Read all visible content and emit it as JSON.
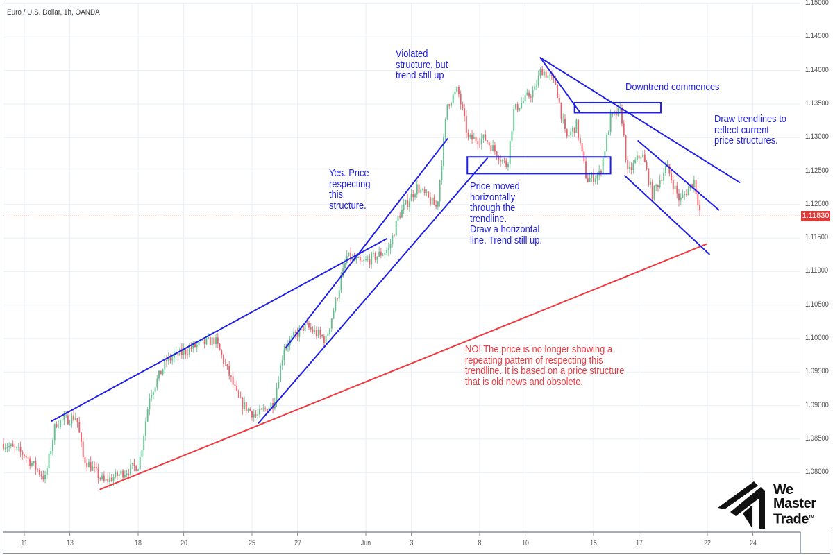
{
  "header": {
    "title": "Euro / U.S. Dollar, 1h, OANDA"
  },
  "colors": {
    "up": "#5fb98a",
    "down": "#e35d66",
    "annotation_blue": "#1f1fe6",
    "annotation_red": "#f0383e",
    "grid": "#e8eff6",
    "current_price": "#e03b3b"
  },
  "chart_data": {
    "type": "candlestick",
    "title": "Euro / U.S. Dollar, 1h, OANDA",
    "ylim": [
      1.075,
      1.15
    ],
    "grid": true,
    "y_ticks": [
      "1.15000",
      "1.14500",
      "1.14000",
      "1.13500",
      "1.13000",
      "1.12500",
      "1.12000",
      "1.11500",
      "1.11000",
      "1.10500",
      "1.10000",
      "1.09500",
      "1.09000",
      "1.08500",
      "1.08000"
    ],
    "x_ticks": [
      {
        "label": "11",
        "date": "05-11"
      },
      {
        "label": "13",
        "date": "05-13"
      },
      {
        "label": "18",
        "date": "05-18"
      },
      {
        "label": "20",
        "date": "05-20"
      },
      {
        "label": "25",
        "date": "05-25"
      },
      {
        "label": "27",
        "date": "05-27"
      },
      {
        "label": "Jun",
        "date": "06-01"
      },
      {
        "label": "3",
        "date": "06-03"
      },
      {
        "label": "8",
        "date": "06-08"
      },
      {
        "label": "10",
        "date": "06-10"
      },
      {
        "label": "15",
        "date": "06-15"
      },
      {
        "label": "17",
        "date": "06-17"
      },
      {
        "label": "22",
        "date": "06-22"
      },
      {
        "label": "24",
        "date": "06-24"
      }
    ],
    "current_price": "1.11830",
    "price_path": [
      [
        "05-08 02:00",
        1.0843
      ],
      [
        "05-11 00:00",
        1.0827
      ],
      [
        "05-11 22:00",
        1.0791
      ],
      [
        "05-12 09:00",
        1.0874
      ],
      [
        "05-13 07:00",
        1.0884
      ],
      [
        "05-13 14:00",
        1.0822
      ],
      [
        "05-14 12:00",
        1.0786
      ],
      [
        "05-18 01:00",
        1.0812
      ],
      [
        "05-18 12:00",
        1.0915
      ],
      [
        "05-19 06:00",
        1.0967
      ],
      [
        "05-20 11:00",
        1.0988
      ],
      [
        "05-21 09:00",
        1.0998
      ],
      [
        "05-22 00:00",
        1.0946
      ],
      [
        "05-22 11:00",
        1.0905
      ],
      [
        "05-25 05:00",
        1.0884
      ],
      [
        "05-25 23:00",
        1.0905
      ],
      [
        "05-26 10:00",
        1.0988
      ],
      [
        "05-27 08:00",
        1.1019
      ],
      [
        "05-28 06:00",
        1.0998
      ],
      [
        "05-29 04:00",
        1.1122
      ],
      [
        "05-29 19:00",
        1.1112
      ],
      [
        "06-01 10:00",
        1.1122
      ],
      [
        "06-02 00:00",
        1.1133
      ],
      [
        "06-02 11:00",
        1.1184
      ],
      [
        "06-03 06:00",
        1.1226
      ],
      [
        "06-04 03:00",
        1.1195
      ],
      [
        "06-04 14:00",
        1.135
      ],
      [
        "06-05 01:00",
        1.1371
      ],
      [
        "06-05 12:00",
        1.1298
      ],
      [
        "06-08 06:00",
        1.1298
      ],
      [
        "06-09 05:00",
        1.1257
      ],
      [
        "06-09 12:00",
        1.134
      ],
      [
        "06-10 10:00",
        1.1371
      ],
      [
        "06-10 17:00",
        1.1402
      ],
      [
        "06-11 08:00",
        1.1381
      ],
      [
        "06-11 19:00",
        1.1298
      ],
      [
        "06-12 06:00",
        1.1319
      ],
      [
        "06-12 17:00",
        1.1236
      ],
      [
        "06-15 07:00",
        1.1246
      ],
      [
        "06-15 18:00",
        1.1329
      ],
      [
        "06-16 05:00",
        1.134
      ],
      [
        "06-16 12:00",
        1.1246
      ],
      [
        "06-17 03:00",
        1.1277
      ],
      [
        "06-17 14:00",
        1.1215
      ],
      [
        "06-18 05:00",
        1.1257
      ],
      [
        "06-18 19:00",
        1.1205
      ],
      [
        "06-19 10:00",
        1.1236
      ],
      [
        "06-19 17:00",
        1.1183
      ]
    ],
    "trendlines": [
      {
        "color": "blue",
        "from": [
          "05-12 05:00",
          1.0877
        ],
        "to": [
          "06-01 22:00",
          1.1149
        ]
      },
      {
        "color": "blue",
        "from": [
          "05-26 12:00",
          1.0987
        ],
        "to": [
          "06-04 14:00",
          1.1298
        ]
      },
      {
        "color": "blue",
        "from": [
          "05-25 07:00",
          1.0874
        ],
        "to": [
          "06-08 08:00",
          1.1269
        ]
      },
      {
        "color": "red",
        "from": [
          "05-14 08:00",
          1.0775
        ],
        "to": [
          "06-19 23:00",
          1.1141
        ]
      },
      {
        "color": "blue",
        "from": [
          "06-10 16:00",
          1.1419
        ],
        "to": [
          "06-23 10:00",
          1.1233
        ]
      },
      {
        "color": "blue",
        "from": [
          "06-10 16:00",
          1.1419
        ],
        "to": [
          "06-12 09:00",
          1.1339
        ]
      },
      {
        "color": "blue",
        "from": [
          "06-16 23:00",
          1.1295
        ],
        "to": [
          "06-22 12:00",
          1.1192
        ]
      },
      {
        "color": "blue",
        "from": [
          "06-16 09:00",
          1.1243
        ],
        "to": [
          "06-22 02:00",
          1.1126
        ]
      }
    ],
    "zones": [
      {
        "from": "06-05 11:00",
        "to": "06-15 18:00",
        "top": 1.1271,
        "bottom": 1.1246
      },
      {
        "from": "06-12 04:00",
        "to": "06-17 23:00",
        "top": 1.1352,
        "bottom": 1.1337
      }
    ],
    "annotations": [
      {
        "id": "violated",
        "color": "blue",
        "lines": [
          "Violated",
          "structure, but",
          "trend still up"
        ]
      },
      {
        "id": "respecting",
        "color": "blue",
        "lines": [
          "Yes. Price",
          "respecting",
          "this",
          "structure."
        ]
      },
      {
        "id": "horizontal",
        "color": "blue",
        "lines": [
          "Price moved",
          "horizontally",
          "through the",
          "trendline.",
          "Draw a horizontal",
          "line. Trend still up."
        ]
      },
      {
        "id": "downtrend",
        "color": "blue",
        "lines": [
          "Downtrend commences"
        ]
      },
      {
        "id": "draw",
        "color": "blue",
        "lines": [
          "Draw trendlines to",
          "reflect current",
          "price structures."
        ]
      },
      {
        "id": "obsolete",
        "color": "red",
        "lines": [
          "NO! The price is no longer showing a",
          "repeating pattern of respecting this",
          "trendline. It is based on a price structure",
          "that is old news and obsolete."
        ]
      }
    ]
  },
  "logo": {
    "text": [
      "We",
      "Master",
      "Trade"
    ],
    "trademark": "TM"
  }
}
